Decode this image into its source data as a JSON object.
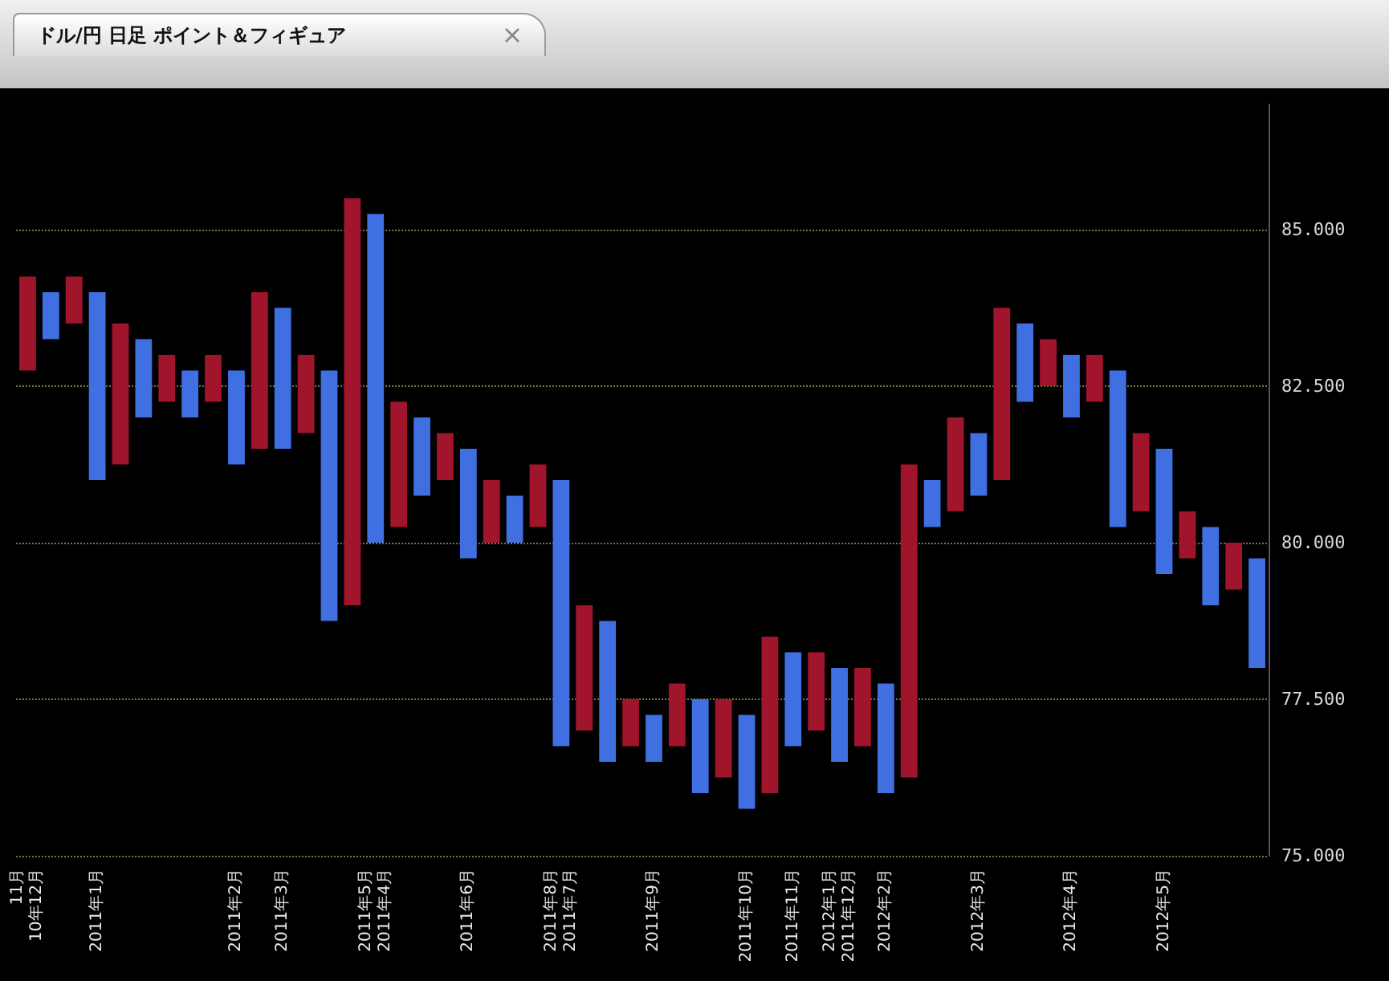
{
  "chart_data": {
    "type": "bar",
    "title": "ドル/円 日足 ポイント＆フィギュア",
    "categories": [
      "11月\n10年12月",
      null,
      null,
      "2011年1月",
      null,
      null,
      null,
      null,
      null,
      "2011年2月",
      null,
      "2011年3月",
      null,
      null,
      null,
      "2011年5月\n2011年4月",
      null,
      null,
      null,
      "2011年6月",
      null,
      null,
      null,
      "2011年8月\n2011年7月",
      null,
      null,
      null,
      "2011年9月",
      null,
      null,
      null,
      "2011年10月",
      null,
      "2011年11月",
      null,
      "2012年1月\n2011年12月",
      null,
      "2012年2月",
      null,
      null,
      null,
      "2012年3月",
      null,
      null,
      null,
      "2012年4月",
      null,
      null,
      null,
      "2012年5月",
      null,
      null,
      null,
      null
    ],
    "series": [
      {
        "color": "#a0142c",
        "base": [
          82.75,
          null,
          83.5,
          null,
          81.25,
          null,
          82.25,
          null,
          82.25,
          null,
          81.5,
          null,
          81.75,
          null,
          79.0,
          null,
          80.25,
          null,
          81.0,
          null,
          80.0,
          null,
          80.25,
          null,
          77.0,
          null,
          76.75,
          null,
          76.75,
          null,
          76.25,
          null,
          76.0,
          null,
          77.0,
          null,
          76.75,
          null,
          76.25,
          null,
          80.5,
          null,
          81.0,
          null,
          82.5,
          null,
          82.25,
          null,
          80.5,
          null,
          79.75,
          null,
          79.25,
          null
        ],
        "values": [
          1.5,
          null,
          0.75,
          null,
          2.25,
          null,
          0.75,
          null,
          0.75,
          null,
          2.5,
          null,
          1.25,
          null,
          6.5,
          null,
          2.0,
          null,
          0.75,
          null,
          1.0,
          null,
          1.0,
          null,
          2.0,
          null,
          0.75,
          null,
          1.0,
          null,
          1.25,
          null,
          2.5,
          null,
          1.25,
          null,
          1.25,
          null,
          5.0,
          null,
          1.5,
          null,
          2.75,
          null,
          0.75,
          null,
          0.75,
          null,
          1.25,
          null,
          0.75,
          null,
          0.75,
          null
        ]
      },
      {
        "color": "#3f6fe0",
        "base": [
          null,
          83.25,
          null,
          81.0,
          null,
          82.0,
          null,
          82.0,
          null,
          81.25,
          null,
          81.5,
          null,
          78.75,
          null,
          80.0,
          null,
          80.75,
          null,
          79.75,
          null,
          80.0,
          null,
          76.75,
          null,
          76.5,
          null,
          76.5,
          null,
          76.0,
          null,
          75.75,
          null,
          76.75,
          null,
          76.5,
          null,
          76.0,
          null,
          80.25,
          null,
          80.75,
          null,
          82.25,
          null,
          82.0,
          null,
          80.25,
          null,
          79.5,
          null,
          79.0,
          null,
          78.0
        ],
        "values": [
          null,
          0.75,
          null,
          3.0,
          null,
          1.25,
          null,
          0.75,
          null,
          1.5,
          null,
          2.25,
          null,
          4.0,
          null,
          5.25,
          null,
          1.25,
          null,
          1.75,
          null,
          0.75,
          null,
          4.25,
          null,
          2.25,
          null,
          0.75,
          null,
          1.5,
          null,
          1.5,
          null,
          1.5,
          null,
          1.5,
          null,
          1.75,
          null,
          0.75,
          null,
          1.0,
          null,
          1.25,
          null,
          1.0,
          null,
          2.5,
          null,
          2.0,
          null,
          1.25,
          null,
          1.75
        ]
      }
    ],
    "ylim": [
      75,
      87
    ],
    "yticks": [
      {
        "value": 75,
        "label": "75.000"
      },
      {
        "value": 77.5,
        "label": "77.500"
      },
      {
        "value": 80,
        "label": "80.000"
      },
      {
        "value": 82.5,
        "label": "82.500"
      },
      {
        "value": 85,
        "label": "85.000"
      }
    ],
    "grid": "y"
  }
}
